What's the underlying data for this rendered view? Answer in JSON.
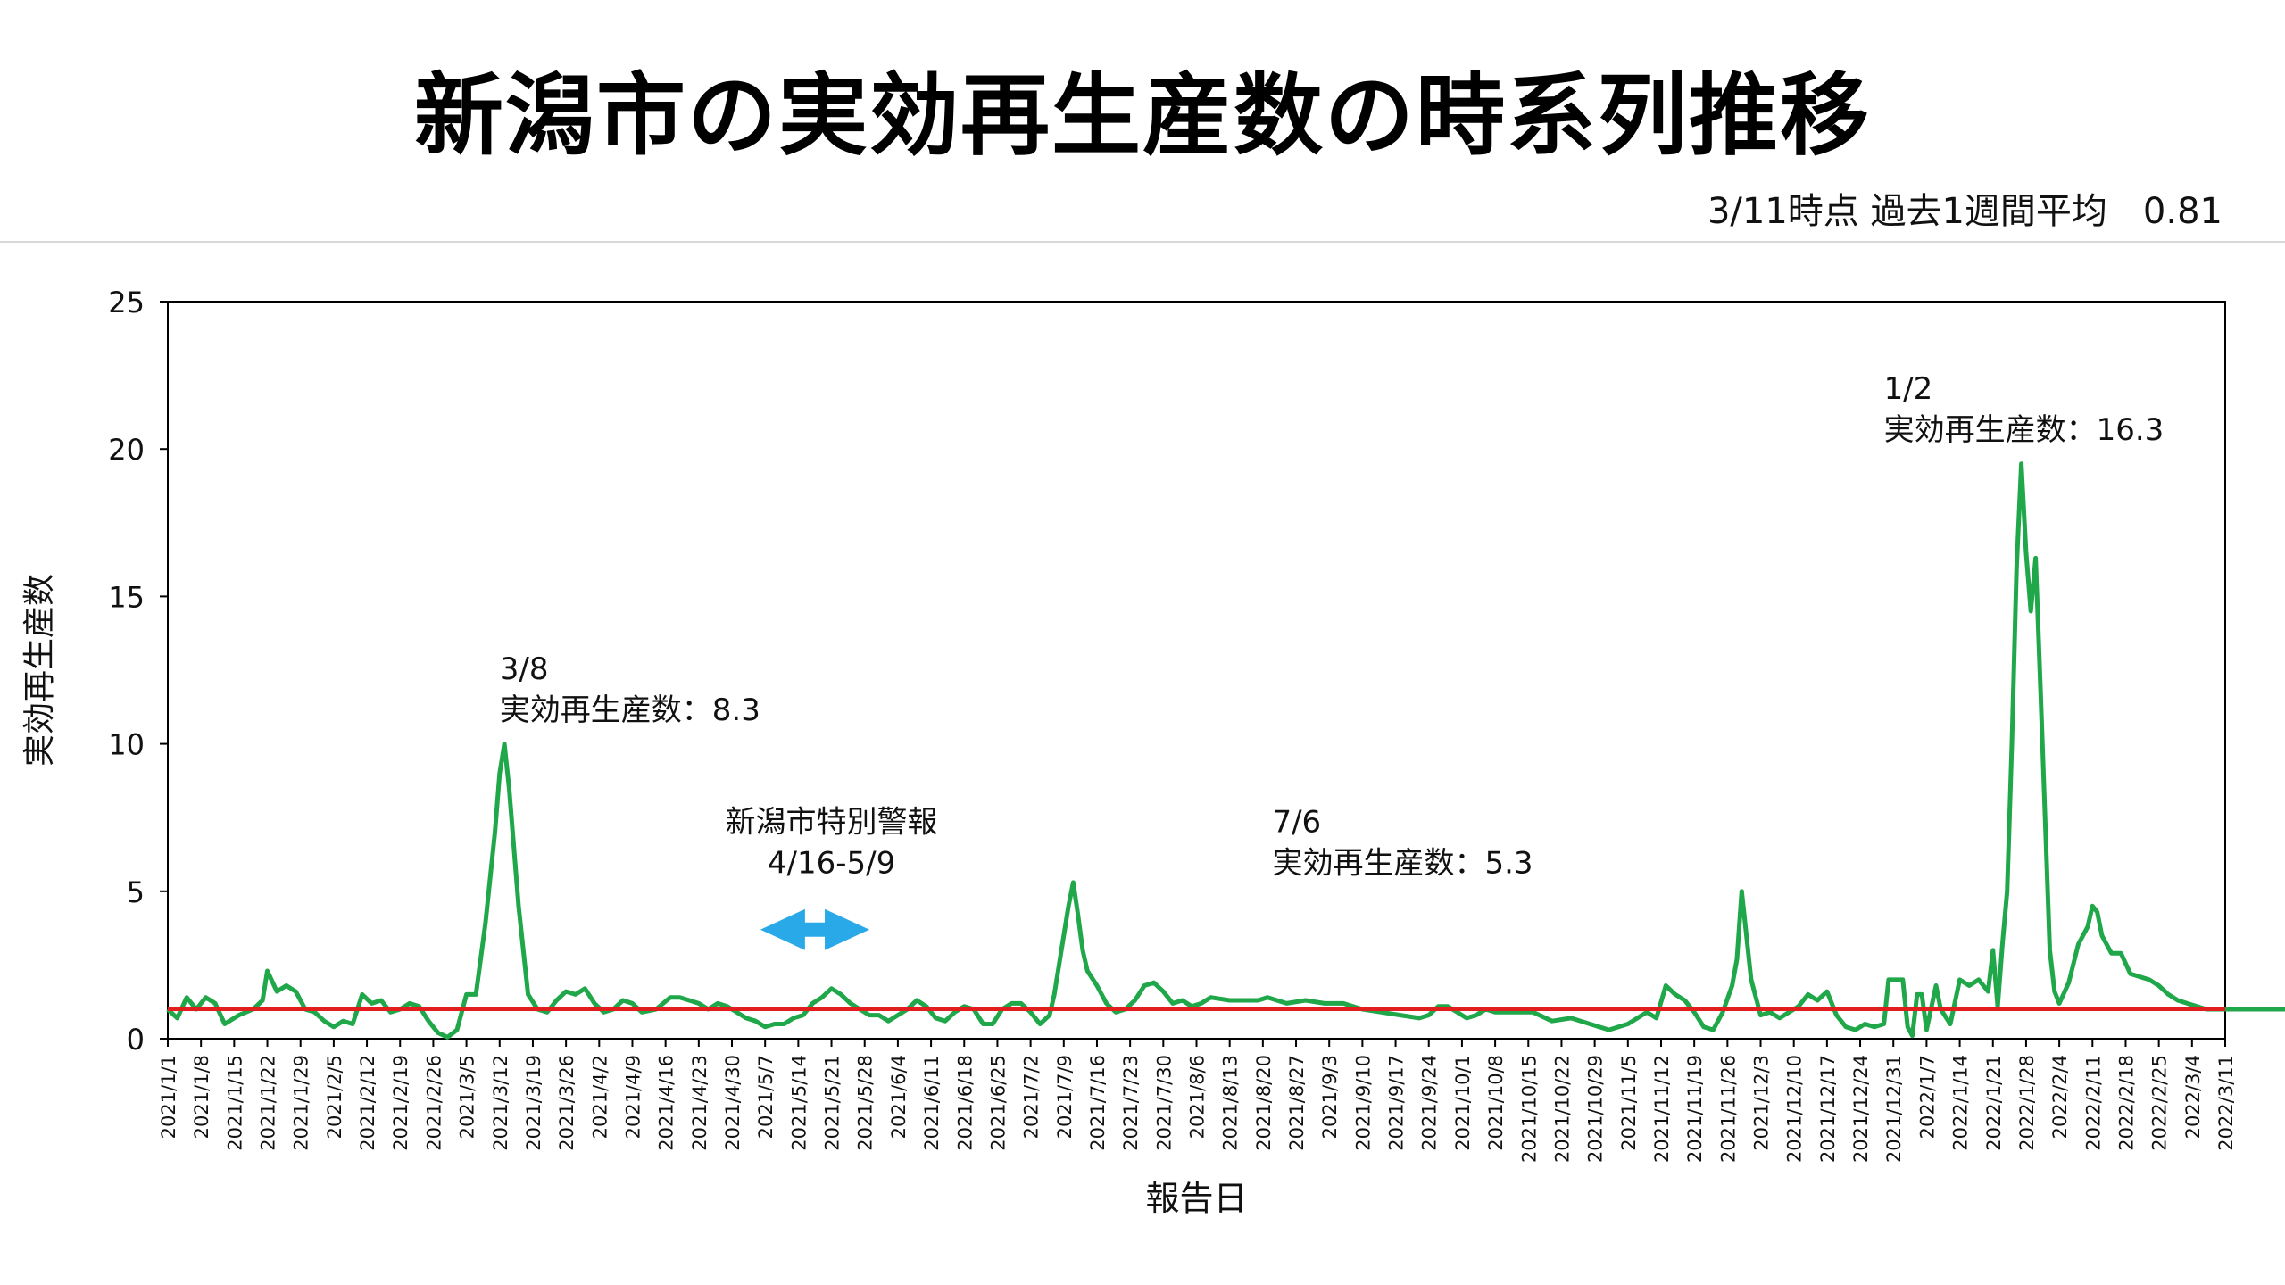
{
  "title": "新潟市の実効再生産数の時系列推移",
  "subtitle": "3/11時点 過去1週間平均　0.81",
  "colors": {
    "series": "#1fa74a",
    "threshold": "#e01e1e",
    "arrow": "#29a9e8",
    "axis": "#000000"
  },
  "chart_data": {
    "type": "line",
    "xlabel": "報告日",
    "ylabel": "実効再生産数",
    "ylim": [
      0,
      25
    ],
    "yticks": [
      0,
      5,
      10,
      15,
      20,
      25
    ],
    "grid": false,
    "x_tick_labels": [
      "2021/1/1",
      "2021/1/8",
      "2021/1/15",
      "2021/1/22",
      "2021/1/29",
      "2021/2/5",
      "2021/2/12",
      "2021/2/19",
      "2021/2/26",
      "2021/3/5",
      "2021/3/12",
      "2021/3/19",
      "2021/3/26",
      "2021/4/2",
      "2021/4/9",
      "2021/4/16",
      "2021/4/23",
      "2021/4/30",
      "2021/5/7",
      "2021/5/14",
      "2021/5/21",
      "2021/5/28",
      "2021/6/4",
      "2021/6/11",
      "2021/6/18",
      "2021/6/25",
      "2021/7/2",
      "2021/7/9",
      "2021/7/16",
      "2021/7/23",
      "2021/7/30",
      "2021/8/6",
      "2021/8/13",
      "2021/8/20",
      "2021/8/27",
      "2021/9/3",
      "2021/9/10",
      "2021/9/17",
      "2021/9/24",
      "2021/10/1",
      "2021/10/8",
      "2021/10/15",
      "2021/10/22",
      "2021/10/29",
      "2021/11/5",
      "2021/11/12",
      "2021/11/19",
      "2021/11/26",
      "2021/12/3",
      "2021/12/10",
      "2021/12/17",
      "2021/12/24",
      "2021/12/31",
      "2022/1/7",
      "2022/1/14",
      "2022/1/21",
      "2022/1/28",
      "2022/2/4",
      "2022/2/11",
      "2022/2/18",
      "2022/2/25",
      "2022/3/4",
      "2022/3/11"
    ],
    "series": [
      {
        "values": [
          [
            0,
            1.0
          ],
          [
            2,
            0.7
          ],
          [
            4,
            1.4
          ],
          [
            6,
            1.0
          ],
          [
            8,
            1.4
          ],
          [
            10,
            1.2
          ],
          [
            12,
            0.5
          ],
          [
            15,
            0.8
          ],
          [
            18,
            1.0
          ],
          [
            20,
            1.3
          ],
          [
            21,
            2.3
          ],
          [
            23,
            1.6
          ],
          [
            25,
            1.8
          ],
          [
            27,
            1.6
          ],
          [
            29,
            1.0
          ],
          [
            31,
            0.9
          ],
          [
            33,
            0.6
          ],
          [
            35,
            0.4
          ],
          [
            37,
            0.6
          ],
          [
            39,
            0.5
          ],
          [
            41,
            1.5
          ],
          [
            43,
            1.2
          ],
          [
            45,
            1.3
          ],
          [
            47,
            0.9
          ],
          [
            49,
            1.0
          ],
          [
            51,
            1.2
          ],
          [
            53,
            1.1
          ],
          [
            55,
            0.6
          ],
          [
            57,
            0.2
          ],
          [
            59,
            0.05
          ],
          [
            61,
            0.3
          ],
          [
            63,
            1.5
          ],
          [
            65,
            1.5
          ],
          [
            67,
            3.9
          ],
          [
            69,
            7.0
          ],
          [
            70,
            9.0
          ],
          [
            71,
            10.0
          ],
          [
            72,
            8.5
          ],
          [
            74,
            4.5
          ],
          [
            75,
            3.0
          ],
          [
            76,
            1.5
          ],
          [
            78,
            1.0
          ],
          [
            80,
            0.9
          ],
          [
            82,
            1.3
          ],
          [
            84,
            1.6
          ],
          [
            86,
            1.5
          ],
          [
            88,
            1.7
          ],
          [
            90,
            1.2
          ],
          [
            92,
            0.9
          ],
          [
            94,
            1.0
          ],
          [
            96,
            1.3
          ],
          [
            98,
            1.2
          ],
          [
            100,
            0.9
          ],
          [
            103,
            1.0
          ],
          [
            106,
            1.4
          ],
          [
            108,
            1.4
          ],
          [
            110,
            1.3
          ],
          [
            112,
            1.2
          ],
          [
            114,
            1.0
          ],
          [
            116,
            1.2
          ],
          [
            118,
            1.1
          ],
          [
            120,
            0.9
          ],
          [
            122,
            0.7
          ],
          [
            124,
            0.6
          ],
          [
            126,
            0.4
          ],
          [
            128,
            0.5
          ],
          [
            130,
            0.5
          ],
          [
            132,
            0.7
          ],
          [
            134,
            0.8
          ],
          [
            136,
            1.2
          ],
          [
            138,
            1.4
          ],
          [
            140,
            1.7
          ],
          [
            142,
            1.5
          ],
          [
            144,
            1.2
          ],
          [
            146,
            1.0
          ],
          [
            148,
            0.8
          ],
          [
            150,
            0.8
          ],
          [
            152,
            0.6
          ],
          [
            154,
            0.8
          ],
          [
            156,
            1.0
          ],
          [
            158,
            1.3
          ],
          [
            160,
            1.1
          ],
          [
            162,
            0.7
          ],
          [
            164,
            0.6
          ],
          [
            166,
            0.9
          ],
          [
            168,
            1.1
          ],
          [
            170,
            1.0
          ],
          [
            172,
            0.5
          ],
          [
            174,
            0.5
          ],
          [
            176,
            1.0
          ],
          [
            178,
            1.2
          ],
          [
            180,
            1.2
          ],
          [
            182,
            0.9
          ],
          [
            184,
            0.5
          ],
          [
            186,
            0.8
          ],
          [
            187,
            1.5
          ],
          [
            188,
            2.5
          ],
          [
            190,
            4.5
          ],
          [
            191,
            5.3
          ],
          [
            192,
            4.2
          ],
          [
            193,
            3.0
          ],
          [
            194,
            2.3
          ],
          [
            196,
            1.8
          ],
          [
            198,
            1.2
          ],
          [
            200,
            0.9
          ],
          [
            202,
            1.0
          ],
          [
            204,
            1.3
          ],
          [
            206,
            1.8
          ],
          [
            208,
            1.9
          ],
          [
            210,
            1.6
          ],
          [
            212,
            1.2
          ],
          [
            214,
            1.3
          ],
          [
            216,
            1.1
          ],
          [
            218,
            1.2
          ],
          [
            220,
            1.4
          ],
          [
            224,
            1.3
          ],
          [
            227,
            1.3
          ],
          [
            230,
            1.3
          ],
          [
            232,
            1.4
          ],
          [
            236,
            1.2
          ],
          [
            240,
            1.3
          ],
          [
            244,
            1.2
          ],
          [
            248,
            1.2
          ],
          [
            252,
            1.0
          ],
          [
            256,
            0.9
          ],
          [
            260,
            0.8
          ],
          [
            264,
            0.7
          ],
          [
            266,
            0.8
          ],
          [
            268,
            1.1
          ],
          [
            270,
            1.1
          ],
          [
            272,
            0.9
          ],
          [
            274,
            0.7
          ],
          [
            276,
            0.8
          ],
          [
            278,
            1.0
          ],
          [
            280,
            0.9
          ],
          [
            284,
            0.9
          ],
          [
            288,
            0.9
          ],
          [
            292,
            0.6
          ],
          [
            296,
            0.7
          ],
          [
            300,
            0.5
          ],
          [
            304,
            0.3
          ],
          [
            308,
            0.5
          ],
          [
            312,
            0.9
          ],
          [
            314,
            0.7
          ],
          [
            316,
            1.8
          ],
          [
            318,
            1.5
          ],
          [
            320,
            1.3
          ],
          [
            322,
            0.9
          ],
          [
            324,
            0.4
          ],
          [
            326,
            0.3
          ],
          [
            328,
            0.9
          ],
          [
            330,
            1.8
          ],
          [
            331,
            2.7
          ],
          [
            332,
            5.0
          ],
          [
            333,
            3.5
          ],
          [
            334,
            2.0
          ],
          [
            336,
            0.8
          ],
          [
            338,
            0.9
          ],
          [
            340,
            0.7
          ],
          [
            342,
            0.9
          ],
          [
            344,
            1.1
          ],
          [
            346,
            1.5
          ],
          [
            348,
            1.3
          ],
          [
            350,
            1.6
          ],
          [
            352,
            0.8
          ],
          [
            354,
            0.4
          ],
          [
            356,
            0.3
          ],
          [
            358,
            0.5
          ],
          [
            360,
            0.4
          ],
          [
            362,
            0.5
          ],
          [
            363,
            2.0
          ],
          [
            366,
            2.0
          ],
          [
            367,
            0.4
          ],
          [
            368,
            0.1
          ],
          [
            369,
            1.5
          ],
          [
            370,
            1.5
          ],
          [
            371,
            0.3
          ],
          [
            373,
            1.8
          ],
          [
            374,
            1.0
          ],
          [
            376,
            0.5
          ],
          [
            378,
            2.0
          ],
          [
            380,
            1.8
          ],
          [
            382,
            2.0
          ],
          [
            384,
            1.6
          ],
          [
            385,
            3.0
          ],
          [
            386,
            1.1
          ],
          [
            387,
            3.2
          ],
          [
            388,
            5.0
          ],
          [
            389,
            10.0
          ],
          [
            390,
            16.0
          ],
          [
            391,
            19.5
          ],
          [
            392,
            16.5
          ],
          [
            393,
            14.5
          ],
          [
            394,
            16.3
          ],
          [
            395,
            12.0
          ],
          [
            396,
            7.5
          ],
          [
            397,
            3.0
          ],
          [
            398,
            1.6
          ],
          [
            399,
            1.2
          ],
          [
            401,
            1.9
          ],
          [
            403,
            3.2
          ],
          [
            405,
            3.8
          ],
          [
            406,
            4.5
          ],
          [
            407,
            4.3
          ],
          [
            408,
            3.5
          ],
          [
            410,
            2.9
          ],
          [
            412,
            2.9
          ],
          [
            414,
            2.2
          ],
          [
            416,
            2.1
          ],
          [
            418,
            2.0
          ],
          [
            420,
            1.8
          ],
          [
            422,
            1.5
          ],
          [
            424,
            1.3
          ],
          [
            426,
            1.2
          ],
          [
            430,
            1.0
          ],
          [
            434,
            1.0
          ],
          [
            438,
            1.0
          ],
          [
            442,
            1.0
          ],
          [
            446,
            1.0
          ],
          [
            450,
            1.0
          ],
          [
            454,
            0.9
          ],
          [
            458,
            0.9
          ],
          [
            462,
            0.8
          ],
          [
            464,
            0.81
          ]
        ]
      }
    ],
    "reference_line": {
      "y": 1.0
    },
    "annotations": [
      {
        "line1": "3/8",
        "line2": "実効再生産数：8.3",
        "at": [
          70,
          12.2
        ]
      },
      {
        "line1": "7/6",
        "line2": "実効再生産数：5.3",
        "at": [
          233,
          7.0
        ]
      },
      {
        "line1": "1/2",
        "line2": "実効再生産数：16.3",
        "at": [
          362,
          21.7
        ]
      },
      {
        "line1": "新潟市特別警報",
        "line2": "4/16-5/9",
        "at": [
          140,
          7.0
        ],
        "arrow": [
          125,
          148,
          3.7
        ]
      }
    ]
  }
}
